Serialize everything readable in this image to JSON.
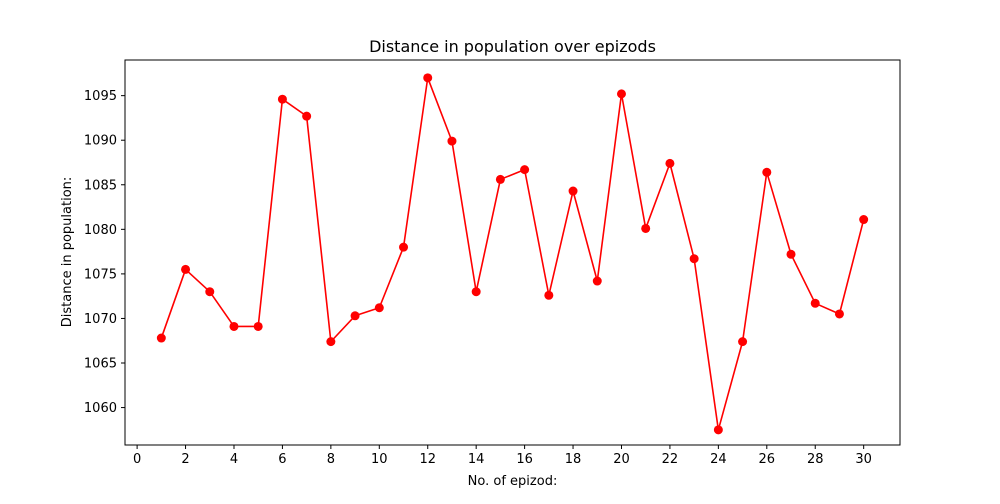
{
  "chart_data": {
    "type": "line",
    "title": "Distance in population over epizods",
    "xlabel": "No. of epizod:",
    "ylabel": "Distance in population:",
    "xlim": [
      -0.5,
      31.5
    ],
    "ylim": [
      1055.8,
      1099
    ],
    "x_ticks": [
      0,
      2,
      4,
      6,
      8,
      10,
      12,
      14,
      16,
      18,
      20,
      22,
      24,
      26,
      28,
      30
    ],
    "y_ticks": [
      1060,
      1065,
      1070,
      1075,
      1080,
      1085,
      1090,
      1095
    ],
    "grid": false,
    "series": [
      {
        "color": "#ff0000",
        "marker": "circle",
        "x": [
          1,
          2,
          3,
          4,
          5,
          6,
          7,
          8,
          9,
          10,
          11,
          12,
          13,
          14,
          15,
          16,
          17,
          18,
          19,
          20,
          21,
          22,
          23,
          24,
          25,
          26,
          27,
          28,
          29,
          30
        ],
        "y": [
          1067.8,
          1075.5,
          1073.0,
          1069.1,
          1069.1,
          1094.6,
          1092.7,
          1067.4,
          1070.3,
          1071.2,
          1078.0,
          1097.0,
          1089.9,
          1073.0,
          1085.6,
          1086.7,
          1072.6,
          1084.3,
          1074.2,
          1095.2,
          1080.1,
          1087.4,
          1076.7,
          1057.5,
          1067.4,
          1086.4,
          1077.2,
          1071.7,
          1070.5,
          1081.1
        ]
      }
    ]
  }
}
